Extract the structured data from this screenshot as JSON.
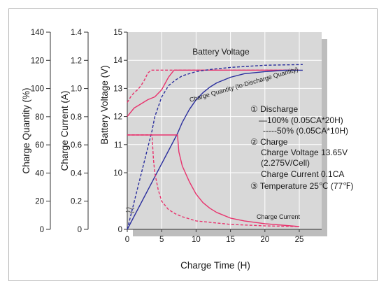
{
  "chart_data": {
    "type": "line",
    "title": "",
    "xlabel": "Charge Time (H)",
    "xlim": [
      0,
      25
    ],
    "x_ticks": [
      "0",
      "5",
      "10",
      "15",
      "20",
      "25"
    ],
    "grid": true,
    "axes": {
      "charge_quantity": {
        "label": "Charge Quantity (%)",
        "ticks": [
          "0",
          "20",
          "40",
          "60",
          "80",
          "100",
          "120",
          "140"
        ],
        "range": [
          0,
          140
        ]
      },
      "charge_current": {
        "label": "Charge Current (A)",
        "ticks": [
          "0",
          "0.2",
          "0.4",
          "0.6",
          "0.8",
          "1.0",
          "1.2",
          "1.4"
        ],
        "range": [
          0,
          1.4
        ]
      },
      "battery_voltage": {
        "label": "Battery Voltage (V)",
        "ticks": [
          "0",
          "10",
          "11",
          "12",
          "13",
          "14",
          "15"
        ],
        "range": [
          9,
          15
        ]
      }
    },
    "series": [
      {
        "name": "Battery Voltage",
        "line_style": "solid",
        "axis": "battery_voltage",
        "color": "#e8336d",
        "x": [
          0,
          1,
          2,
          3,
          4,
          5,
          6,
          6.8,
          8,
          10,
          12,
          15,
          18,
          20,
          25
        ],
        "y": [
          12.0,
          12.3,
          12.45,
          12.6,
          12.7,
          12.95,
          13.4,
          13.65,
          13.65,
          13.65,
          13.65,
          13.65,
          13.65,
          13.65,
          13.65
        ]
      },
      {
        "name": "Battery Voltage (50%)",
        "line_style": "dashed",
        "axis": "battery_voltage",
        "color": "#e8336d",
        "x": [
          0,
          0.5,
          1,
          1.5,
          2,
          2.5,
          3,
          3.5,
          4,
          6,
          10,
          15,
          20,
          25
        ],
        "y": [
          12.5,
          12.7,
          12.85,
          12.95,
          13.1,
          13.3,
          13.55,
          13.65,
          13.65,
          13.65,
          13.65,
          13.65,
          13.65,
          13.65
        ]
      },
      {
        "name": "Charge Quantity (to-Discharge Quantity)",
        "line_style": "solid",
        "axis": "charge_quantity",
        "color": "#2b2f9e",
        "x": [
          0,
          7.3,
          8,
          9,
          10,
          11,
          12,
          13,
          14,
          15,
          17,
          20,
          23,
          25.5
        ],
        "y": [
          0,
          68,
          76,
          85,
          92,
          97,
          101,
          104,
          106,
          108,
          110.5,
          112,
          113,
          113
        ]
      },
      {
        "name": "Charge Quantity (50%)",
        "line_style": "dashed",
        "axis": "charge_quantity",
        "color": "#2b2f9e",
        "x": [
          0,
          3.6,
          4,
          5,
          6,
          7,
          8,
          10,
          12,
          15,
          20,
          25.5
        ],
        "y": [
          0,
          70,
          80,
          94,
          102,
          106,
          109,
          112,
          113.5,
          115,
          116.5,
          117
        ]
      },
      {
        "name": "Charge Current",
        "line_style": "solid",
        "axis": "charge_current",
        "color": "#e8336d",
        "x": [
          0,
          7.3,
          7.5,
          8,
          9,
          10,
          11,
          12,
          13,
          15,
          17,
          20,
          25
        ],
        "y": [
          0.67,
          0.67,
          0.55,
          0.45,
          0.34,
          0.25,
          0.19,
          0.15,
          0.12,
          0.08,
          0.06,
          0.04,
          0.02
        ]
      },
      {
        "name": "Charge Current (50%)",
        "line_style": "dashed",
        "axis": "charge_current",
        "color": "#e8336d",
        "x": [
          0,
          3.6,
          3.8,
          4,
          4.5,
          5,
          6,
          7,
          8,
          10,
          12,
          15,
          20,
          25
        ],
        "y": [
          0.67,
          0.67,
          0.5,
          0.4,
          0.28,
          0.2,
          0.14,
          0.11,
          0.09,
          0.06,
          0.05,
          0.035,
          0.025,
          0.02
        ]
      }
    ],
    "annotations": {
      "battery_voltage_label": "Battery Voltage",
      "charge_quantity_label": "Charge Quantity (to-Discharge Quantity)",
      "charge_current_label": "Charge Current",
      "legend_lines": [
        {
          "text": "① Discharge"
        },
        {
          "text": "—100% (0.05CA*20H)"
        },
        {
          "text": "-----50% (0.05CA*10H)"
        },
        {
          "text": "② Charge"
        },
        {
          "text": "Charge Voltage 13.65V"
        },
        {
          "text": "(2.275V/Cell)"
        },
        {
          "text": "Charge Current 0.1CA"
        },
        {
          "text": "③ Temperature 25℃ (77℉)"
        }
      ]
    },
    "colors": {
      "pink": "#e8336d",
      "blue": "#2b2f9e",
      "plot_bg": "#d8d8d8",
      "shadow": "#bdbdbd",
      "grid": "#ffffff"
    }
  }
}
